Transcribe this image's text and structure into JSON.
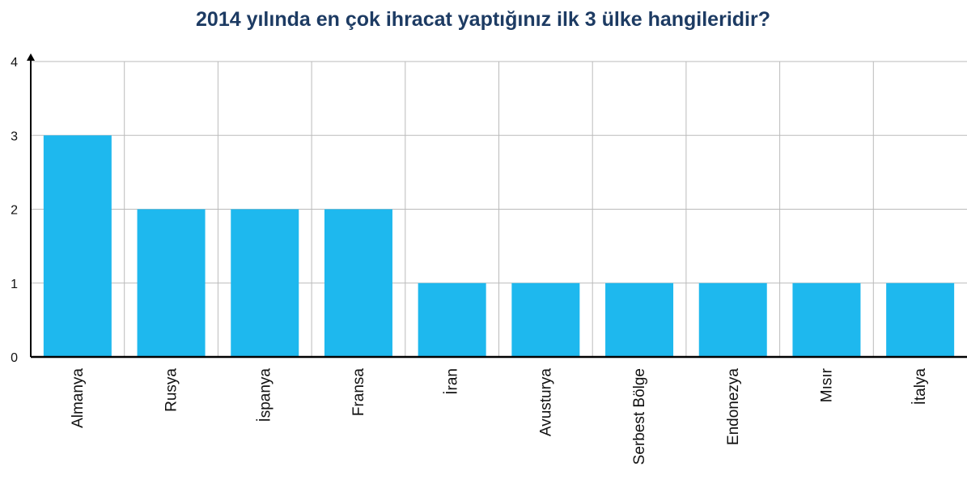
{
  "chart_data": {
    "type": "bar",
    "title": "2014 yılında en çok ihracat yaptığınız ilk 3 ülke hangileridir?",
    "categories": [
      "Almanya",
      "Rusya",
      "İspanya",
      "Fransa",
      "İran",
      "Avusturya",
      "Serbest Bölge",
      "Endonezya",
      "Mısır",
      "İtalya"
    ],
    "values": [
      3,
      2,
      2,
      2,
      1,
      1,
      1,
      1,
      1,
      1
    ],
    "color": "#1eb8ee",
    "ylim": [
      0,
      4
    ],
    "yticks": [
      0,
      1,
      2,
      3,
      4
    ],
    "grid": true
  }
}
